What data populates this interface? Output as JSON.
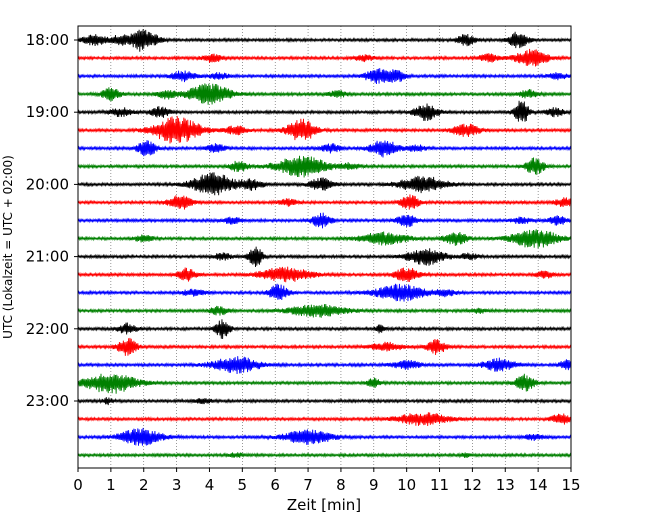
{
  "chart_data": {
    "type": "line",
    "xlabel": "Zeit  [min]",
    "ylabel": "UTC (Lokalzeit = UTC + 02:00)",
    "xlim": [
      0,
      15
    ],
    "x_ticks": [
      0,
      1,
      2,
      3,
      4,
      5,
      6,
      7,
      8,
      9,
      10,
      11,
      12,
      13,
      14,
      15
    ],
    "y_ticks": [
      "18:00",
      "19:00",
      "20:00",
      "21:00",
      "22:00",
      "23:00"
    ],
    "grid": "vertical dotted",
    "trace_colors": [
      "#000000",
      "#ff0000",
      "#0000ff",
      "#008000"
    ],
    "rows": [
      {
        "start": "18:00",
        "color": "#000000",
        "bursts": [
          [
            0.5,
            0.25,
            5
          ],
          [
            1.3,
            0.2,
            5
          ],
          [
            1.9,
            0.2,
            10
          ],
          [
            2.3,
            0.2,
            4
          ],
          [
            11.8,
            0.2,
            5
          ],
          [
            13.4,
            0.2,
            8
          ]
        ]
      },
      {
        "start": "18:15",
        "color": "#ff0000",
        "bursts": [
          [
            4.1,
            0.2,
            4
          ],
          [
            8.7,
            0.2,
            3
          ],
          [
            12.5,
            0.2,
            4
          ],
          [
            13.8,
            0.35,
            8
          ]
        ]
      },
      {
        "start": "18:30",
        "color": "#0000ff",
        "bursts": [
          [
            3.2,
            0.25,
            5
          ],
          [
            4.3,
            0.2,
            3
          ],
          [
            9.1,
            0.25,
            7
          ],
          [
            9.7,
            0.2,
            6
          ],
          [
            14.6,
            0.2,
            3
          ]
        ]
      },
      {
        "start": "18:45",
        "color": "#008000",
        "bursts": [
          [
            1.0,
            0.2,
            6
          ],
          [
            2.7,
            0.2,
            4
          ],
          [
            4.0,
            0.45,
            10
          ],
          [
            7.9,
            0.2,
            3
          ],
          [
            13.7,
            0.2,
            4
          ]
        ]
      },
      {
        "start": "19:00",
        "color": "#000000",
        "bursts": [
          [
            1.3,
            0.25,
            4
          ],
          [
            2.5,
            0.2,
            5
          ],
          [
            10.6,
            0.25,
            8
          ],
          [
            13.5,
            0.15,
            12
          ],
          [
            14.5,
            0.2,
            4
          ]
        ]
      },
      {
        "start": "19:15",
        "color": "#ff0000",
        "bursts": [
          [
            3.0,
            0.5,
            13
          ],
          [
            4.8,
            0.25,
            4
          ],
          [
            6.8,
            0.3,
            11
          ],
          [
            11.8,
            0.3,
            6
          ]
        ]
      },
      {
        "start": "19:30",
        "color": "#0000ff",
        "bursts": [
          [
            2.1,
            0.2,
            8
          ],
          [
            4.2,
            0.2,
            4
          ],
          [
            7.7,
            0.2,
            4
          ],
          [
            9.3,
            0.3,
            8
          ],
          [
            10.3,
            0.2,
            3
          ]
        ]
      },
      {
        "start": "19:45",
        "color": "#008000",
        "bursts": [
          [
            4.9,
            0.2,
            5
          ],
          [
            6.8,
            0.55,
            10
          ],
          [
            8.3,
            0.2,
            3
          ],
          [
            13.9,
            0.2,
            8
          ]
        ]
      },
      {
        "start": "20:00",
        "color": "#000000",
        "bursts": [
          [
            4.1,
            0.45,
            11
          ],
          [
            5.3,
            0.25,
            5
          ],
          [
            7.4,
            0.25,
            6
          ],
          [
            10.5,
            0.5,
            8
          ]
        ]
      },
      {
        "start": "20:15",
        "color": "#ff0000",
        "bursts": [
          [
            3.1,
            0.25,
            7
          ],
          [
            6.4,
            0.2,
            3
          ],
          [
            10.1,
            0.2,
            7
          ],
          [
            14.8,
            0.2,
            4
          ]
        ]
      },
      {
        "start": "20:30",
        "color": "#0000ff",
        "bursts": [
          [
            4.7,
            0.2,
            3
          ],
          [
            7.4,
            0.2,
            7
          ],
          [
            10.0,
            0.2,
            6
          ],
          [
            13.5,
            0.2,
            3
          ],
          [
            14.6,
            0.2,
            4
          ]
        ]
      },
      {
        "start": "20:45",
        "color": "#008000",
        "bursts": [
          [
            2.0,
            0.2,
            3
          ],
          [
            9.3,
            0.5,
            6
          ],
          [
            11.5,
            0.25,
            6
          ],
          [
            13.9,
            0.5,
            9
          ]
        ]
      },
      {
        "start": "21:00",
        "color": "#000000",
        "bursts": [
          [
            4.4,
            0.2,
            3
          ],
          [
            5.4,
            0.15,
            10
          ],
          [
            10.6,
            0.4,
            8
          ],
          [
            11.9,
            0.2,
            3
          ]
        ]
      },
      {
        "start": "21:15",
        "color": "#ff0000",
        "bursts": [
          [
            3.3,
            0.2,
            6
          ],
          [
            6.3,
            0.55,
            7
          ],
          [
            10.0,
            0.25,
            7
          ],
          [
            14.2,
            0.2,
            3
          ]
        ]
      },
      {
        "start": "21:30",
        "color": "#0000ff",
        "bursts": [
          [
            3.5,
            0.25,
            3
          ],
          [
            6.1,
            0.2,
            8
          ],
          [
            9.8,
            0.55,
            8
          ],
          [
            11.2,
            0.2,
            3
          ]
        ]
      },
      {
        "start": "21:45",
        "color": "#008000",
        "bursts": [
          [
            4.3,
            0.2,
            4
          ],
          [
            7.3,
            0.6,
            6
          ],
          [
            12.2,
            0.2,
            2
          ]
        ]
      },
      {
        "start": "22:00",
        "color": "#000000",
        "bursts": [
          [
            1.5,
            0.2,
            5
          ],
          [
            4.4,
            0.15,
            9
          ],
          [
            9.2,
            0.1,
            4
          ]
        ]
      },
      {
        "start": "22:15",
        "color": "#ff0000",
        "bursts": [
          [
            1.5,
            0.2,
            9
          ],
          [
            9.4,
            0.35,
            4
          ],
          [
            10.9,
            0.2,
            7
          ]
        ]
      },
      {
        "start": "22:30",
        "color": "#0000ff",
        "bursts": [
          [
            4.8,
            0.5,
            8
          ],
          [
            10.0,
            0.3,
            4
          ],
          [
            12.8,
            0.35,
            6
          ],
          [
            14.9,
            0.15,
            6
          ]
        ]
      },
      {
        "start": "22:45",
        "color": "#008000",
        "bursts": [
          [
            1.0,
            0.55,
            10
          ],
          [
            9.0,
            0.15,
            4
          ],
          [
            13.6,
            0.2,
            8
          ]
        ]
      },
      {
        "start": "23:00",
        "color": "#000000",
        "bursts": [
          [
            0.9,
            0.1,
            3
          ],
          [
            3.8,
            0.2,
            2
          ]
        ]
      },
      {
        "start": "23:15",
        "color": "#ff0000",
        "bursts": [
          [
            10.5,
            0.55,
            6
          ],
          [
            14.7,
            0.2,
            5
          ]
        ]
      },
      {
        "start": "23:30",
        "color": "#0000ff",
        "bursts": [
          [
            1.9,
            0.45,
            8
          ],
          [
            7.0,
            0.5,
            7
          ],
          [
            13.9,
            0.2,
            3
          ]
        ]
      },
      {
        "start": "23:45",
        "color": "#008000",
        "bursts": [
          [
            4.8,
            0.15,
            2
          ],
          [
            11.8,
            0.1,
            2
          ]
        ]
      }
    ]
  }
}
